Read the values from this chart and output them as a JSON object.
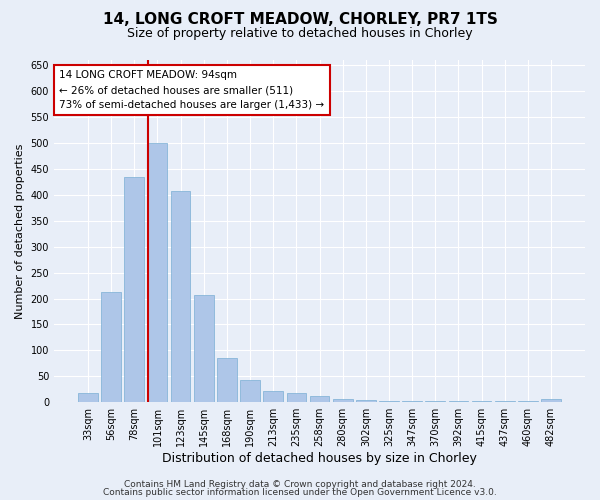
{
  "title1": "14, LONG CROFT MEADOW, CHORLEY, PR7 1TS",
  "title2": "Size of property relative to detached houses in Chorley",
  "xlabel": "Distribution of detached houses by size in Chorley",
  "ylabel": "Number of detached properties",
  "categories": [
    "33sqm",
    "56sqm",
    "78sqm",
    "101sqm",
    "123sqm",
    "145sqm",
    "168sqm",
    "190sqm",
    "213sqm",
    "235sqm",
    "258sqm",
    "280sqm",
    "302sqm",
    "325sqm",
    "347sqm",
    "370sqm",
    "392sqm",
    "415sqm",
    "437sqm",
    "460sqm",
    "482sqm"
  ],
  "values": [
    17,
    213,
    435,
    500,
    407,
    206,
    85,
    42,
    22,
    17,
    12,
    7,
    5,
    3,
    3,
    3,
    3,
    3,
    3,
    3,
    7
  ],
  "bar_color": "#aec6e8",
  "bar_edgecolor": "#7aafd4",
  "vline_color": "#cc0000",
  "annotation_text": "14 LONG CROFT MEADOW: 94sqm\n← 26% of detached houses are smaller (511)\n73% of semi-detached houses are larger (1,433) →",
  "annotation_box_color": "#cc0000",
  "ylim": [
    0,
    660
  ],
  "yticks": [
    0,
    50,
    100,
    150,
    200,
    250,
    300,
    350,
    400,
    450,
    500,
    550,
    600,
    650
  ],
  "footer1": "Contains HM Land Registry data © Crown copyright and database right 2024.",
  "footer2": "Contains public sector information licensed under the Open Government Licence v3.0.",
  "background_color": "#e8eef8",
  "plot_background": "#e8eef8",
  "grid_color": "#ffffff",
  "title1_fontsize": 11,
  "title2_fontsize": 9,
  "xlabel_fontsize": 9,
  "ylabel_fontsize": 8,
  "tick_fontsize": 7,
  "annotation_fontsize": 7.5,
  "footer_fontsize": 6.5
}
